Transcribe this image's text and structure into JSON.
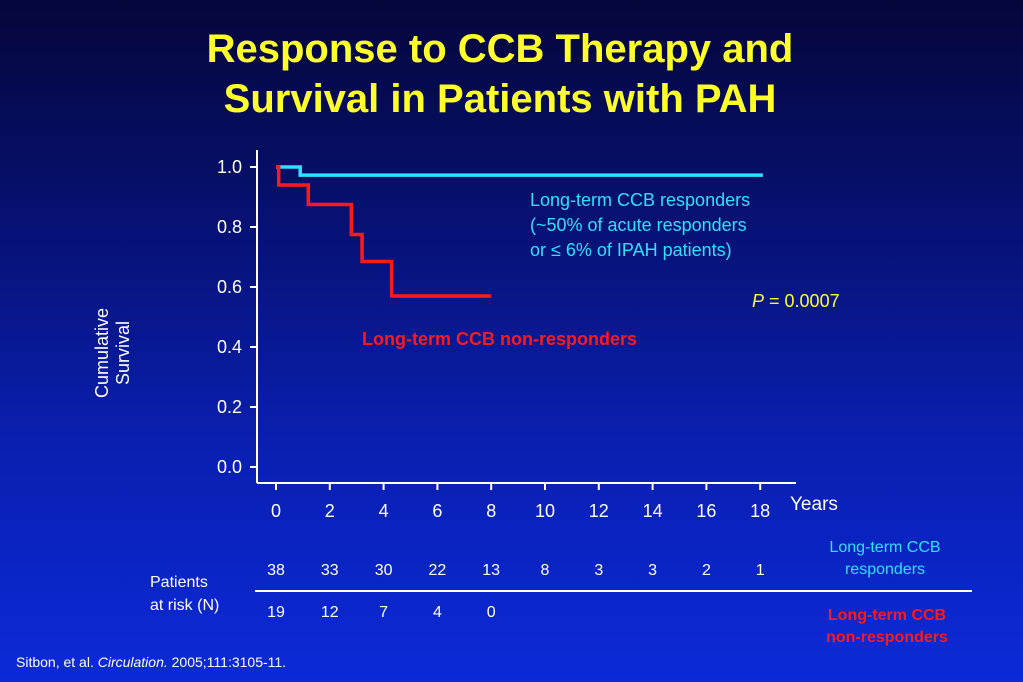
{
  "title_line1": "Response to CCB Therapy and",
  "title_line2": "Survival in Patients with PAH",
  "y_axis_label_line1": "Cumulative",
  "y_axis_label_line2": "Survival",
  "x_unit_label": "Years",
  "responders_annotation": [
    "Long-term CCB responders",
    "(~50% of acute responders",
    "or ≤ 6% of IPAH patients)"
  ],
  "non_responders_annotation": "Long-term CCB non-responders",
  "p_value_symbol": "P",
  "p_value_text": " = 0.0007",
  "patients_at_risk_label": [
    "Patients",
    "at risk (N)"
  ],
  "risk_table": {
    "responders_label": [
      "Long-term CCB",
      "responders"
    ],
    "non_responders_label": [
      "Long-term CCB",
      "non-responders"
    ],
    "responders": [
      "38",
      "33",
      "30",
      "22",
      "13",
      "8",
      "3",
      "3",
      "2",
      "1"
    ],
    "non_responders": [
      "19",
      "12",
      "7",
      "4",
      "0"
    ]
  },
  "source_prefix": "Sitbon, et al. ",
  "source_journal": "Circulation.",
  "source_suffix": " 2005;111:3105-11.",
  "colors": {
    "title": "#ffff2a",
    "responders": "#2fe0ff",
    "non_responders": "#ff1a1a",
    "axis": "#ffffff"
  },
  "chart_data": {
    "type": "line",
    "title": "Response to CCB Therapy and Survival in Patients with PAH",
    "xlabel": "Years",
    "ylabel": "Cumulative Survival",
    "xlim": [
      0,
      19
    ],
    "ylim": [
      0,
      1.0
    ],
    "x_ticks": [
      0,
      2,
      4,
      6,
      8,
      10,
      12,
      14,
      16,
      18
    ],
    "y_ticks": [
      "0.0",
      "0.2",
      "0.4",
      "0.6",
      "0.8",
      "1.0"
    ],
    "grid": false,
    "series": [
      {
        "name": "Long-term CCB responders",
        "step": true,
        "x": [
          0,
          0.9,
          18.1
        ],
        "y": [
          1.0,
          0.973,
          0.973
        ]
      },
      {
        "name": "Long-term CCB non-responders",
        "step": true,
        "x": [
          0,
          0.1,
          1.2,
          2.8,
          3.2,
          4.3,
          8.0
        ],
        "y": [
          1.0,
          0.94,
          0.875,
          0.775,
          0.685,
          0.57,
          0.57
        ]
      }
    ]
  }
}
